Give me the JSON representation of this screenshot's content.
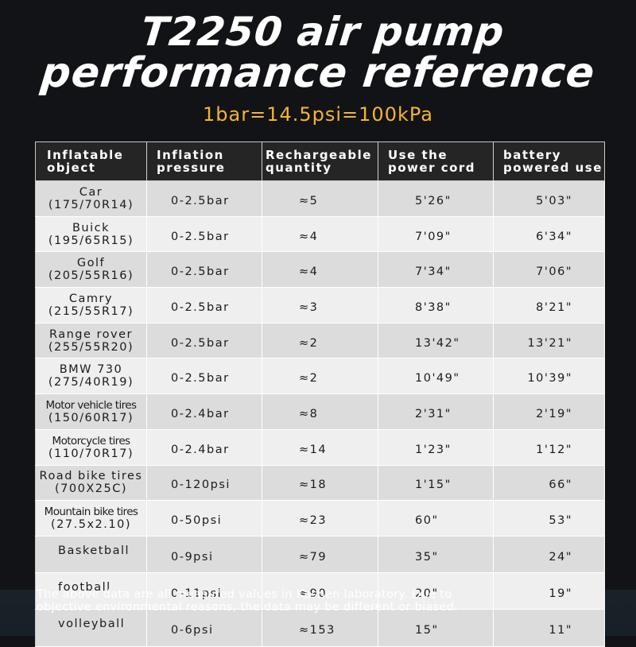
{
  "title": {
    "line1": "T2250 air pump",
    "line2": "performance reference"
  },
  "subtitle": "1bar=14.5psi=100kPa",
  "colors": {
    "background": "#121316",
    "subtitle": "#f4b530",
    "header_bg": "#252525",
    "row_dark": "#dcdcdc",
    "row_light": "#efefef"
  },
  "table": {
    "headers": [
      {
        "line1": "Inflatable",
        "line2": "object"
      },
      {
        "line1": "Inflation",
        "line2": "pressure"
      },
      {
        "line1": "Rechargeable",
        "line2": "quantity"
      },
      {
        "line1": "Use the",
        "line2": "power cord"
      },
      {
        "line1": "battery",
        "line2": "powered use"
      }
    ],
    "rows": [
      {
        "name": "Car",
        "size": "(175/70R14)",
        "pressure": "0-2.5bar",
        "quantity": "≈5",
        "power_cord": "5'26\"",
        "battery": "5'03\""
      },
      {
        "name": "Buick",
        "size": "(195/65R15)",
        "pressure": "0-2.5bar",
        "quantity": "≈4",
        "power_cord": "7'09\"",
        "battery": "6'34\""
      },
      {
        "name": "Golf",
        "size": "(205/55R16)",
        "pressure": "0-2.5bar",
        "quantity": "≈4",
        "power_cord": "7'34\"",
        "battery": "7'06\""
      },
      {
        "name": "Camry",
        "size": "(215/55R17)",
        "pressure": "0-2.5bar",
        "quantity": "≈3",
        "power_cord": "8'38\"",
        "battery": "8'21\""
      },
      {
        "name": "Range rover",
        "size": "(255/55R20)",
        "pressure": "0-2.5bar",
        "quantity": "≈2",
        "power_cord": "13'42\"",
        "battery": "13'21\""
      },
      {
        "name": "BMW 730",
        "size": "(275/40R19)",
        "pressure": "0-2.5bar",
        "quantity": "≈2",
        "power_cord": "10'49\"",
        "battery": "10'39\""
      },
      {
        "name": "Motor vehicle tires",
        "size": "(150/60R17)",
        "pressure": "0-2.4bar",
        "quantity": "≈8",
        "power_cord": "2'31\"",
        "battery": "2'19\""
      },
      {
        "name": "Motorcycle tires",
        "size": "(110/70R17)",
        "pressure": "0-2.4bar",
        "quantity": "≈14",
        "power_cord": "1'23\"",
        "battery": "1'12\""
      },
      {
        "name": "Road bike tires",
        "size": "(700X25C)",
        "pressure": "0-120psi",
        "quantity": "≈18",
        "power_cord": "1'15\"",
        "battery": "66\""
      },
      {
        "name": "Mountain bike tires",
        "size": "(27.5x2.10)",
        "pressure": "0-50psi",
        "quantity": "≈23",
        "power_cord": "60\"",
        "battery": "53\""
      },
      {
        "name": "Basketball",
        "size": "",
        "pressure": "0-9psi",
        "quantity": "≈79",
        "power_cord": "35\"",
        "battery": "24\""
      },
      {
        "name": "football",
        "size": "",
        "pressure": "0-11psi",
        "quantity": "≈90",
        "power_cord": "20\"",
        "battery": "19\""
      },
      {
        "name": "volleyball",
        "size": "",
        "pressure": "0-6psi",
        "quantity": "≈153",
        "power_cord": "15\"",
        "battery": "11\""
      }
    ]
  },
  "footer_note": {
    "line1": "The above data are all measured values in Kashen laboratory. Due to",
    "line2": "objective environmental reasons, the data may be different or biased."
  }
}
